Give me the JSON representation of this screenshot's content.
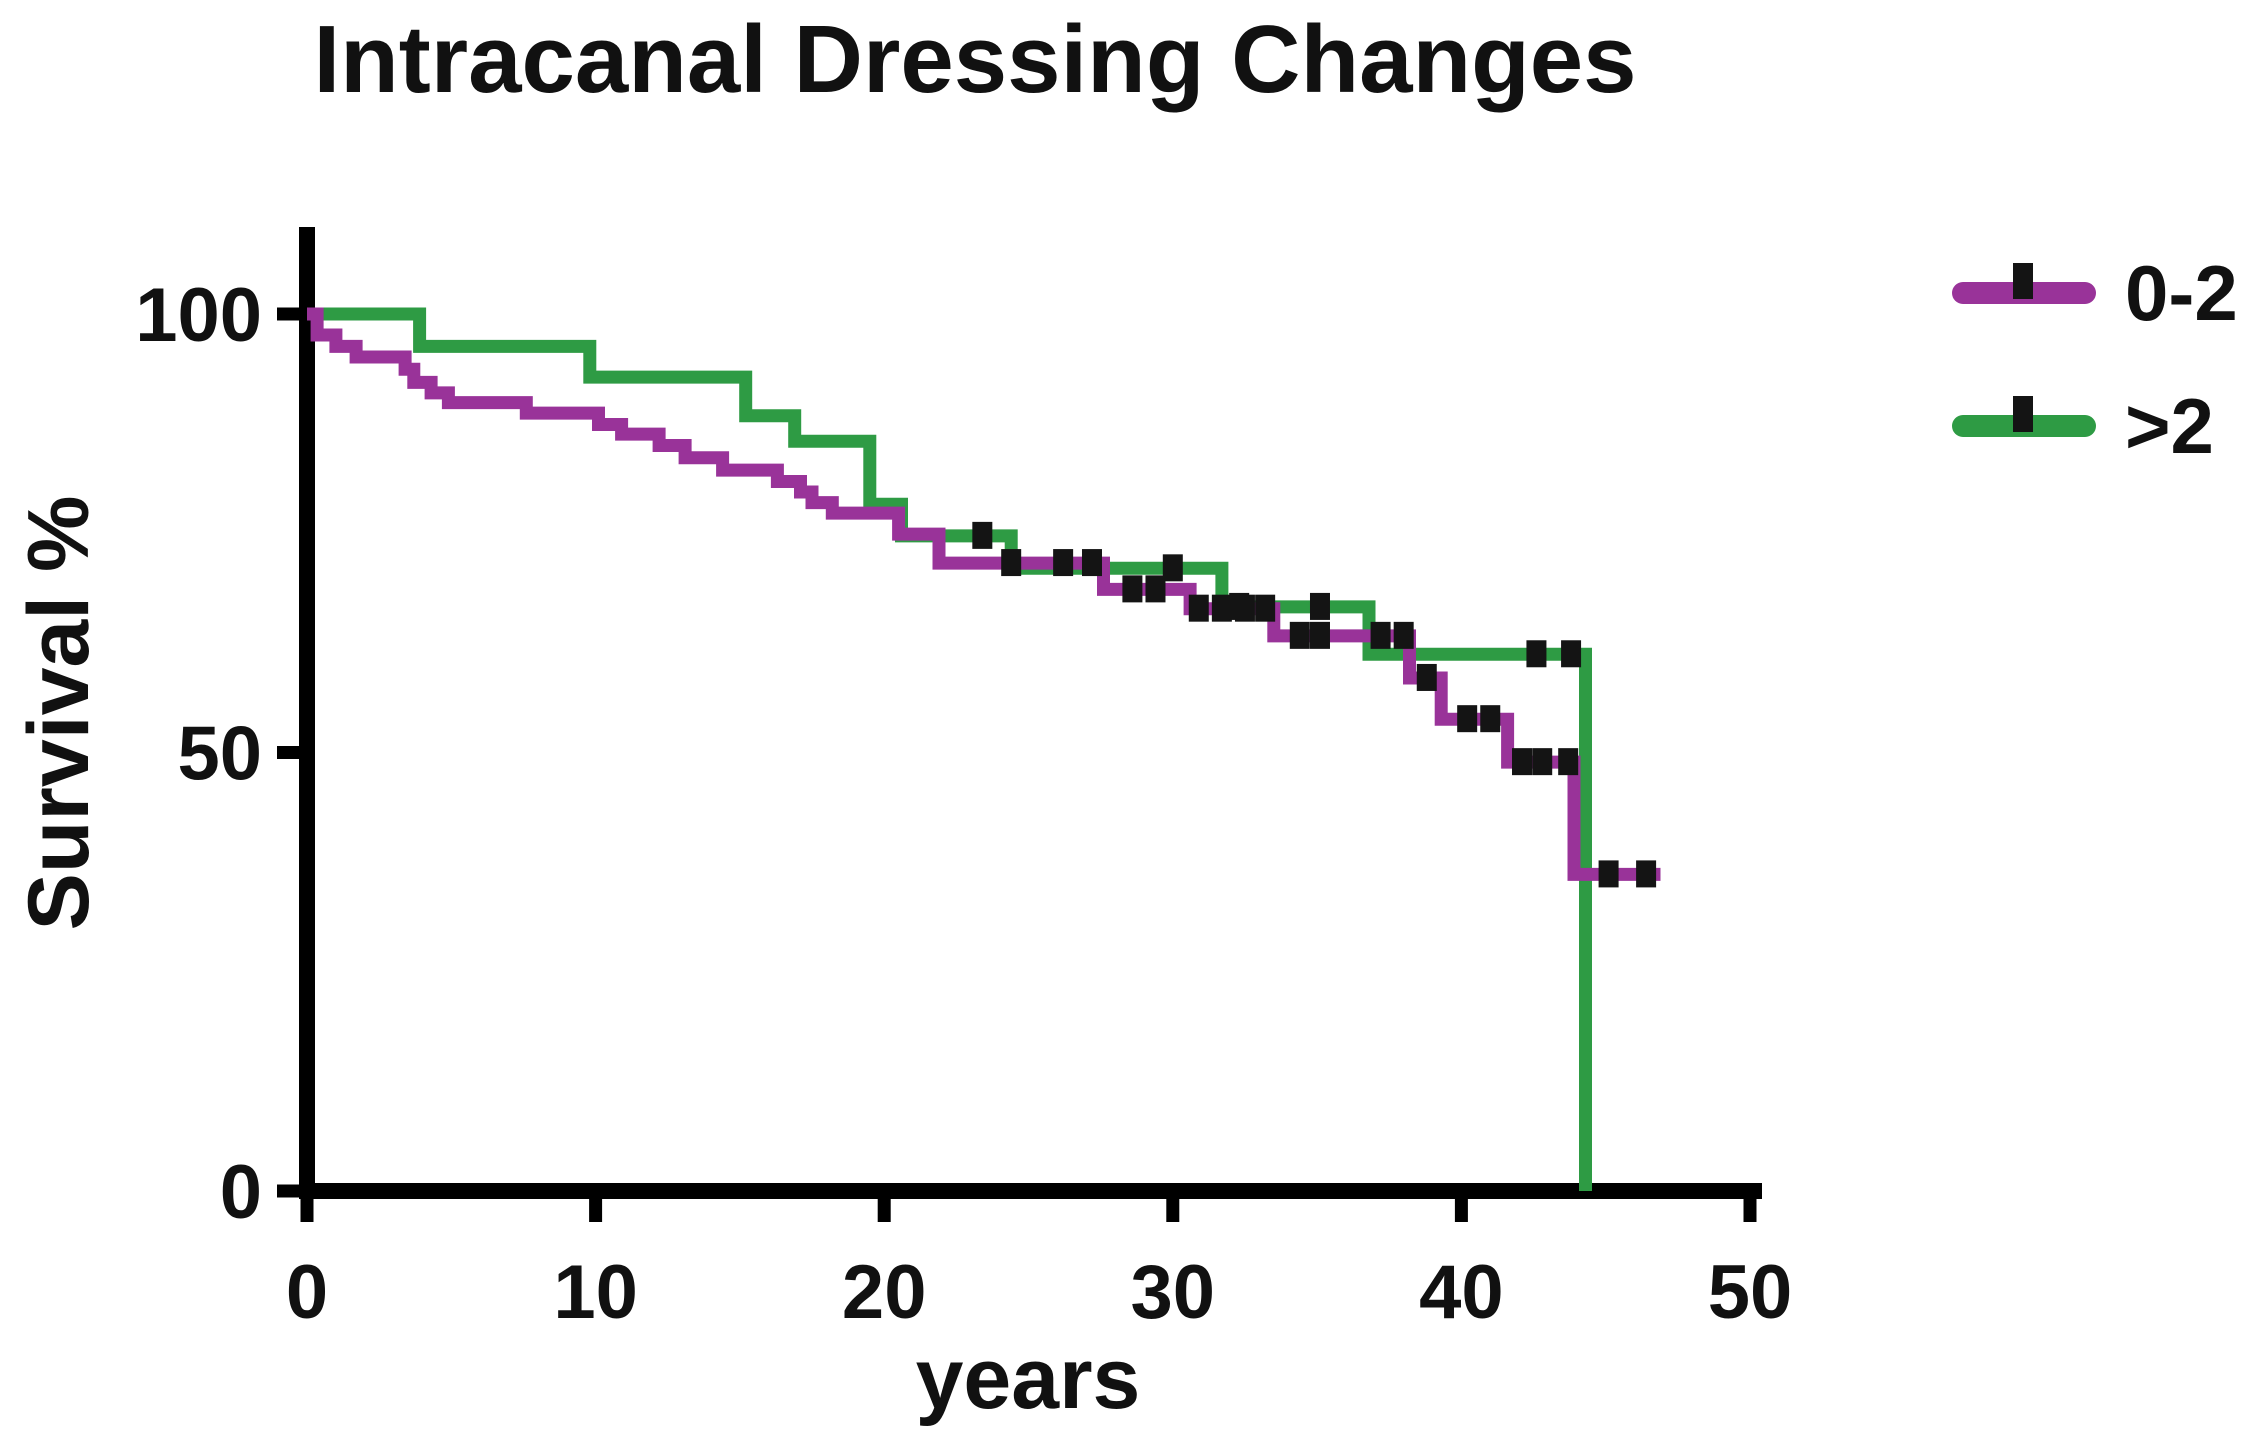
{
  "chart_data": {
    "type": "line",
    "subtype": "kaplan-meier-step-survival",
    "title": "Intracanal Dressing Changes",
    "xlabel": "years",
    "ylabel": "Survival %",
    "xlim": [
      0,
      50
    ],
    "ylim": [
      0,
      100
    ],
    "x_ticks": [
      0,
      10,
      20,
      30,
      40,
      50
    ],
    "y_ticks": [
      0,
      50,
      100
    ],
    "grid": false,
    "legend_position": "top-right",
    "axis_color": "#000000",
    "censor_color": "#141414",
    "series": [
      {
        "name": "0-2",
        "color": "#993399",
        "steps": [
          [
            0,
            100
          ],
          [
            0.35,
            97.6
          ],
          [
            1.0,
            96.3
          ],
          [
            1.7,
            95.1
          ],
          [
            3.4,
            93.7
          ],
          [
            3.7,
            92.2
          ],
          [
            4.3,
            91.0
          ],
          [
            4.9,
            89.9
          ],
          [
            7.6,
            88.7
          ],
          [
            10.1,
            87.4
          ],
          [
            10.9,
            86.3
          ],
          [
            12.2,
            85.0
          ],
          [
            13.1,
            83.6
          ],
          [
            14.4,
            82.2
          ],
          [
            16.3,
            80.9
          ],
          [
            17.1,
            79.7
          ],
          [
            17.5,
            78.5
          ],
          [
            18.2,
            77.3
          ],
          [
            20.5,
            74.9
          ],
          [
            21.9,
            71.6
          ],
          [
            27.6,
            68.6
          ],
          [
            30.6,
            66.4
          ],
          [
            33.5,
            63.3
          ],
          [
            38.2,
            58.5
          ],
          [
            39.3,
            53.8
          ],
          [
            41.6,
            48.9
          ],
          [
            43.9,
            36.1
          ]
        ],
        "end_year": 46.9,
        "censor_marks": [
          [
            24.4,
            71.6
          ],
          [
            26.2,
            71.6
          ],
          [
            27.2,
            71.6
          ],
          [
            28.6,
            68.6
          ],
          [
            29.4,
            68.6
          ],
          [
            30.9,
            66.4
          ],
          [
            31.7,
            66.4
          ],
          [
            32.5,
            66.4
          ],
          [
            33.2,
            66.4
          ],
          [
            34.4,
            63.3
          ],
          [
            35.1,
            63.3
          ],
          [
            37.2,
            63.3
          ],
          [
            38.0,
            63.3
          ],
          [
            38.8,
            58.5
          ],
          [
            40.2,
            53.8
          ],
          [
            41.0,
            53.8
          ],
          [
            42.1,
            48.9
          ],
          [
            42.8,
            48.9
          ],
          [
            43.7,
            48.9
          ],
          [
            45.1,
            36.1
          ],
          [
            46.4,
            36.1
          ]
        ]
      },
      {
        "name": ">2",
        "color": "#2E9B44",
        "steps": [
          [
            0,
            100
          ],
          [
            3.9,
            96.3
          ],
          [
            9.8,
            92.8
          ],
          [
            15.2,
            88.4
          ],
          [
            16.9,
            85.5
          ],
          [
            19.5,
            78.3
          ],
          [
            20.6,
            74.7
          ],
          [
            24.4,
            71.0
          ],
          [
            31.7,
            66.6
          ],
          [
            36.8,
            61.2
          ],
          [
            44.3,
            0
          ]
        ],
        "end_year": 44.3,
        "censor_marks": [
          [
            23.4,
            74.7
          ],
          [
            30.0,
            71.0
          ],
          [
            32.3,
            66.6
          ],
          [
            35.1,
            66.6
          ],
          [
            42.6,
            61.2
          ],
          [
            43.8,
            61.2
          ]
        ]
      }
    ]
  }
}
